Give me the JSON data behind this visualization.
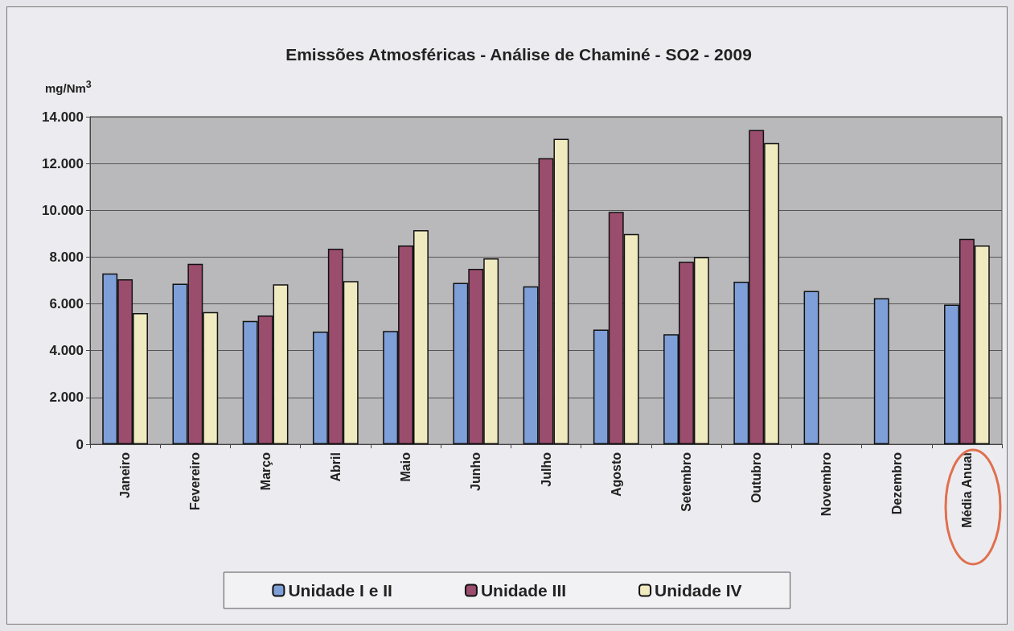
{
  "chart_data": {
    "type": "bar",
    "title": "Emissões Atmosféricas - Análise de Chaminé - SO2 - 2009",
    "ylabel": "mg/Nm$^{3}$",
    "categories": [
      "Janeiro",
      "Fevereiro",
      "Março",
      "Abril",
      "Maio",
      "Junho",
      "Julho",
      "Agosto",
      "Setembro",
      "Outubro",
      "Novembro",
      "Dezembro",
      "Média Anual"
    ],
    "series": [
      {
        "name": "Unidade I e II",
        "color": "#7f9fd8",
        "values": [
          7300,
          6860,
          5270,
          4820,
          4840,
          6900,
          6750,
          4900,
          4700,
          6950,
          6550,
          6240,
          5970
        ]
      },
      {
        "name": "Unidade III",
        "color": "#9b4d6e",
        "values": [
          7050,
          7710,
          5500,
          8360,
          8500,
          7500,
          12230,
          9930,
          7800,
          13430,
          null,
          null,
          8780
        ]
      },
      {
        "name": "Unidade IV",
        "color": "#f0eac0",
        "values": [
          5610,
          5650,
          6840,
          6970,
          9150,
          7950,
          13050,
          8990,
          8000,
          12870,
          null,
          null,
          8500
        ]
      }
    ],
    "ylim": [
      0,
      14000
    ],
    "yticks": [
      {
        "value": 0,
        "label": "0"
      },
      {
        "value": 2000,
        "label": "2.000"
      },
      {
        "value": 4000,
        "label": "4.000"
      },
      {
        "value": 6000,
        "label": "6.000"
      },
      {
        "value": 8000,
        "label": "8.000"
      },
      {
        "value": 10000,
        "label": "10.000"
      },
      {
        "value": 12000,
        "label": "12.000"
      },
      {
        "value": 14000,
        "label": "14.000"
      }
    ],
    "grid": "y",
    "legend": "bottom"
  }
}
